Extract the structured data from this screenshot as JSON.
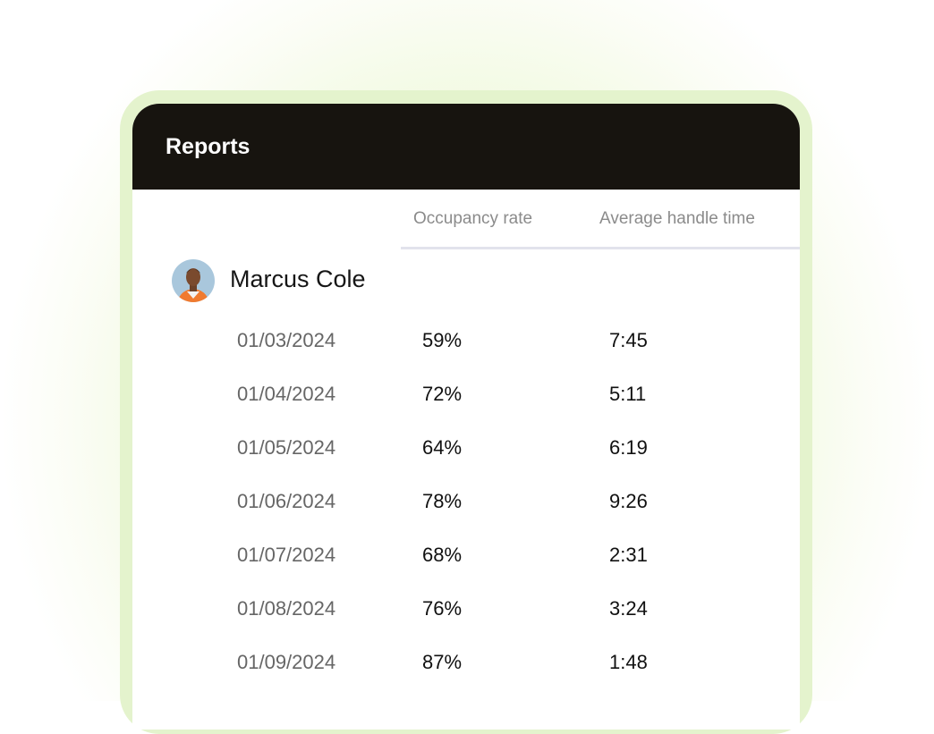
{
  "header": {
    "title": "Reports"
  },
  "table": {
    "columns": [
      "Occupancy rate",
      "Average handle time"
    ],
    "agent": "Marcus Cole",
    "rows": [
      [
        "01/03/2024",
        "59%",
        "7:45"
      ],
      [
        "01/04/2024",
        "72%",
        "5:11"
      ],
      [
        "01/05/2024",
        "64%",
        "6:19"
      ],
      [
        "01/06/2024",
        "78%",
        "9:26"
      ],
      [
        "01/07/2024",
        "68%",
        "2:31"
      ],
      [
        "01/08/2024",
        "76%",
        "3:24"
      ],
      [
        "01/09/2024",
        "87%",
        "1:48"
      ]
    ]
  }
}
